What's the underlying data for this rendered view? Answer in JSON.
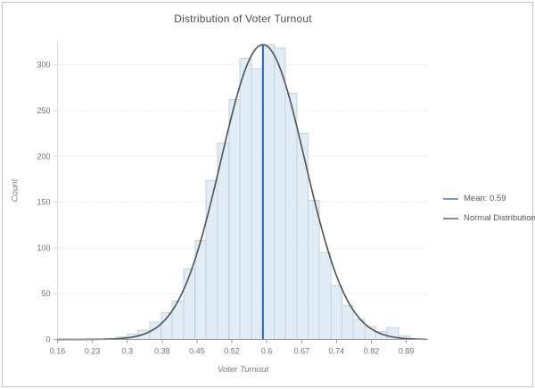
{
  "window": {
    "background": "#ffffff",
    "border_color": "#c6c6c6"
  },
  "chart_data": {
    "type": "bar",
    "subtype": "histogram-with-normal-curve",
    "title": "Distribution of Voter Turnout",
    "xlabel": "Voter Turnout",
    "ylabel": "Count",
    "xlim": [
      0.16,
      0.9356
    ],
    "ylim": [
      0,
      325
    ],
    "x_tick_labels": [
      "0.16",
      "0.23",
      "0.3",
      "0.38",
      "0.45",
      "0.52",
      "0.6",
      "0.67",
      "0.74",
      "0.82",
      "0.89"
    ],
    "y_tick_labels": [
      "0",
      "50",
      "100",
      "150",
      "200",
      "250",
      "300"
    ],
    "y_ticks": [
      0,
      50,
      100,
      150,
      200,
      250,
      300
    ],
    "grid": "horizontal-dotted",
    "legend_position": "right",
    "histogram": {
      "bin_width": 0.0237,
      "centers": [
        0.27,
        0.294,
        0.318,
        0.341,
        0.365,
        0.389,
        0.412,
        0.436,
        0.46,
        0.483,
        0.507,
        0.531,
        0.554,
        0.578,
        0.602,
        0.625,
        0.649,
        0.673,
        0.696,
        0.72,
        0.744,
        0.767,
        0.791,
        0.815,
        0.838,
        0.862,
        0.886
      ],
      "counts": [
        1,
        3,
        6,
        10,
        19,
        29,
        42,
        77,
        108,
        174,
        215,
        262,
        307,
        296,
        322,
        318,
        269,
        225,
        152,
        95,
        59,
        37,
        22,
        14,
        9,
        13,
        4
      ]
    },
    "normal_curve": {
      "mean": 0.59,
      "sigma": 0.088,
      "peak_count": 322
    },
    "mean_line": {
      "x": 0.59,
      "value_label": "0.59"
    },
    "legend": [
      {
        "label": "Mean: 0.59",
        "swatch_color": "#6d9bd6"
      },
      {
        "label": "Normal Distribution",
        "swatch_color": "#8c8c8c"
      }
    ]
  },
  "colors": {
    "bar_fill": "#d9e7f2",
    "bar_stroke": "#bed5e7",
    "curve": "#58595b",
    "mean_line": "#2161d1",
    "gridline": "#dadada",
    "x_axis_line": "#9b9b9b",
    "y_axis_line": "#dcdcdc",
    "tick_mark": "#9b9b9b",
    "tick_label": "#737373",
    "title_text": "#4d4d4d"
  }
}
